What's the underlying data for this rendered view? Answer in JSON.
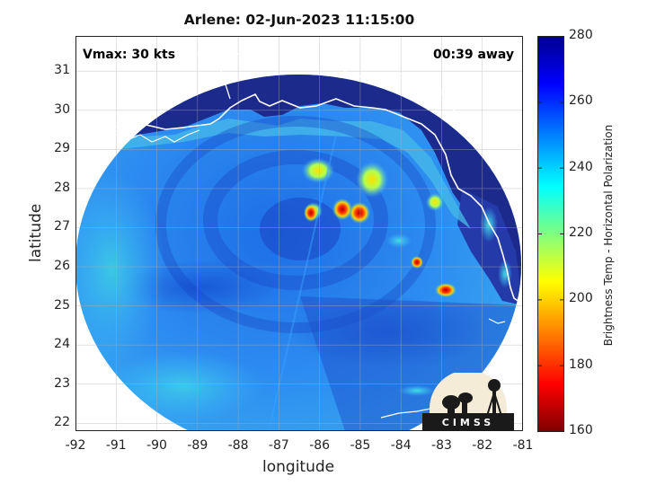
{
  "title": "Arlene: 02-Jun-2023 11:15:00",
  "vmax_label": "Vmax: 30 kts",
  "time_away_label": "00:39 away",
  "logo_text": "CIMSS",
  "map": {
    "xlabel": "longitude",
    "ylabel": "latitude",
    "lon_range": [
      -92,
      -81
    ],
    "lat_range": [
      21.8,
      31.9
    ],
    "lon_ticks": [
      "-92",
      "-91",
      "-90",
      "-89",
      "-88",
      "-87",
      "-86",
      "-85",
      "-84",
      "-83",
      "-82",
      "-81"
    ],
    "lat_ticks": [
      "31",
      "30",
      "29",
      "28",
      "27",
      "26",
      "25",
      "24",
      "23",
      "22"
    ],
    "grid": true,
    "features": {
      "storm_center": {
        "lon": -86.8,
        "lat": 27.2
      },
      "hot_spots": [
        {
          "lon": -85.1,
          "lat": 27.4
        },
        {
          "lon": -85.6,
          "lat": 27.4
        },
        {
          "lon": -86.1,
          "lat": 27.4
        },
        {
          "lon": -82.8,
          "lat": 25.5
        },
        {
          "lon": -83.4,
          "lat": 26.2
        }
      ]
    }
  },
  "colorbar": {
    "label": "Brightness Temp - Horizontal Polarization",
    "ticks": [
      "280",
      "260",
      "240",
      "220",
      "200",
      "180",
      "160"
    ],
    "range": [
      160,
      280
    ],
    "colors": [
      "#7f0000",
      "#ff0000",
      "#ff8000",
      "#ffff00",
      "#80ff80",
      "#00ffff",
      "#0080ff",
      "#0000ff",
      "#00008f"
    ]
  }
}
